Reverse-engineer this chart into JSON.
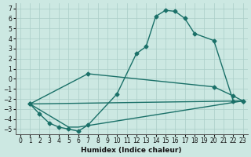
{
  "xlabel": "Humidex (Indice chaleur)",
  "xlim": [
    -0.5,
    23.5
  ],
  "ylim": [
    -5.5,
    7.5
  ],
  "xticks": [
    0,
    1,
    2,
    3,
    4,
    5,
    6,
    7,
    8,
    9,
    10,
    11,
    12,
    13,
    14,
    15,
    16,
    17,
    18,
    19,
    20,
    21,
    22,
    23
  ],
  "yticks": [
    -5,
    -4,
    -3,
    -2,
    -1,
    0,
    1,
    2,
    3,
    4,
    5,
    6,
    7
  ],
  "background_color": "#cce8e2",
  "grid_color": "#aacec8",
  "line_color": "#1a7068",
  "curve1_x": [
    1,
    2,
    3,
    4,
    5,
    6,
    7,
    10,
    12,
    13,
    14,
    15,
    16,
    17,
    18,
    20,
    22,
    23
  ],
  "curve1_y": [
    -2.5,
    -3.5,
    -4.4,
    -4.8,
    -5.0,
    -5.2,
    -4.6,
    -1.5,
    2.5,
    3.2,
    6.2,
    6.8,
    6.7,
    6.0,
    4.5,
    3.8,
    -2.2,
    -2.2
  ],
  "curve2_x": [
    1,
    7,
    20,
    22,
    23
  ],
  "curve2_y": [
    -2.5,
    0.5,
    -0.8,
    -1.7,
    -2.2
  ],
  "curve3_x": [
    1,
    23
  ],
  "curve3_y": [
    -2.5,
    -2.2
  ],
  "curve4_x": [
    1,
    5,
    6,
    23
  ],
  "curve4_y": [
    -2.5,
    -4.8,
    -4.8,
    -2.2
  ],
  "marker_style": "D",
  "marker_size": 2.5,
  "line_width": 1.0,
  "tick_fontsize": 5.5,
  "xlabel_fontsize": 6.5
}
